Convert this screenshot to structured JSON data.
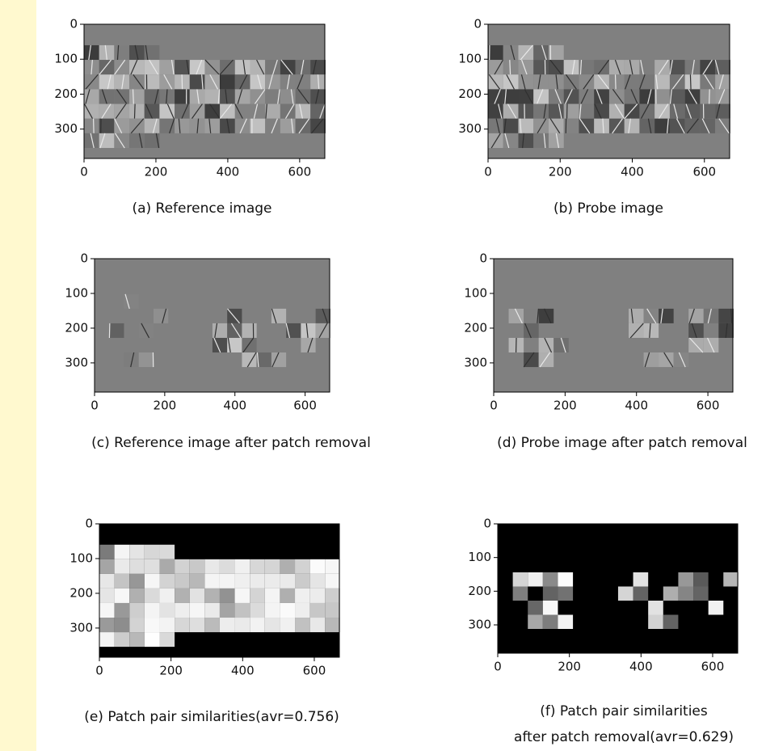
{
  "panels": [
    {
      "caption": [
        "(a) Reference image"
      ],
      "xlim": [
        0,
        670
      ],
      "ylim": [
        384,
        0
      ],
      "xticks": [
        0,
        200,
        400,
        600
      ],
      "yticks": [
        0,
        100,
        200,
        300
      ]
    },
    {
      "caption": [
        "(b) Probe image"
      ],
      "xlim": [
        0,
        670
      ],
      "ylim": [
        384,
        0
      ],
      "xticks": [
        0,
        200,
        400,
        600
      ],
      "yticks": [
        0,
        100,
        200,
        300
      ]
    },
    {
      "caption": [
        "(c) Reference image after patch removal"
      ],
      "xlim": [
        0,
        670
      ],
      "ylim": [
        384,
        0
      ],
      "xticks": [
        0,
        200,
        400,
        600
      ],
      "yticks": [
        0,
        100,
        200,
        300
      ]
    },
    {
      "caption": [
        "(d) Probe image after patch removal"
      ],
      "xlim": [
        0,
        670
      ],
      "ylim": [
        384,
        0
      ],
      "xticks": [
        0,
        200,
        400,
        600
      ],
      "yticks": [
        0,
        100,
        200,
        300
      ]
    },
    {
      "caption": [
        "(e) Patch pair similarities(avr=0.756)"
      ],
      "xlim": [
        0,
        670
      ],
      "ylim": [
        384,
        0
      ],
      "xticks": [
        0,
        200,
        400,
        600
      ],
      "yticks": [
        0,
        100,
        200,
        300
      ]
    },
    {
      "caption": [
        "(f) Patch pair similarities",
        "after patch removal(avr=0.629)"
      ],
      "xlim": [
        0,
        670
      ],
      "ylim": [
        384,
        0
      ],
      "xticks": [
        0,
        200,
        400,
        600
      ],
      "yticks": [
        0,
        100,
        200,
        300
      ]
    }
  ]
}
